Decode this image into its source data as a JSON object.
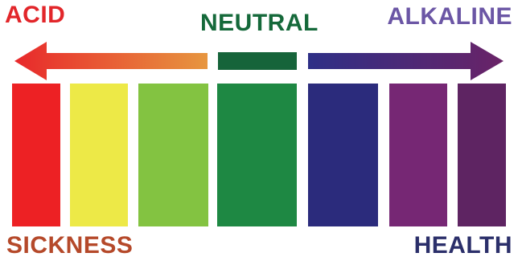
{
  "labels": {
    "acid": "ACID",
    "neutral": "NEUTRAL",
    "alkaline": "ALKALINE",
    "sickness": "SICKNESS",
    "health": "HEALTH"
  },
  "colors": {
    "acid_text": "#e2262a",
    "neutral_text": "#15693a",
    "alkaline_text": "#6b56a5",
    "sickness_text": "#b5492a",
    "health_text": "#2b2f6a",
    "acid_arrow_start": "#e8282b",
    "acid_arrow_end": "#e7963f",
    "neutral_block": "#16643a",
    "alkaline_arrow_start": "#2e2f86",
    "alkaline_arrow_end": "#6a2367"
  },
  "scale_bars": [
    {
      "name": "red",
      "color": "#ed2124"
    },
    {
      "name": "yellow",
      "color": "#ede947"
    },
    {
      "name": "light-green",
      "color": "#83c341"
    },
    {
      "name": "green",
      "color": "#1e8843"
    },
    {
      "name": "blue",
      "color": "#2b2b7c"
    },
    {
      "name": "purple",
      "color": "#762774"
    },
    {
      "name": "dark-purple",
      "color": "#5e2462"
    }
  ]
}
